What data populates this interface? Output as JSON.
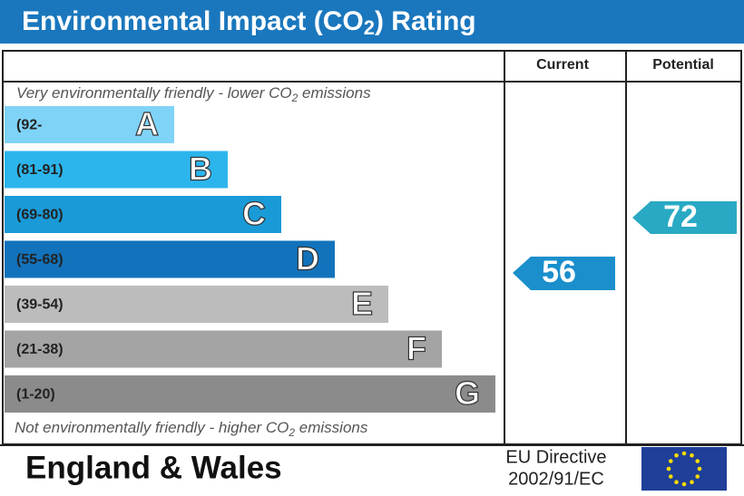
{
  "title": {
    "before": "Environmental Impact (CO",
    "sub": "2",
    "after": ") Rating"
  },
  "columns": {
    "current": "Current",
    "potential": "Potential"
  },
  "top_note": {
    "before": "Very environmentally friendly - lower CO",
    "sub": "2",
    "after": " emissions"
  },
  "bottom_note": {
    "before": "Not environmentally friendly - higher CO",
    "sub": "2",
    "after": " emissions"
  },
  "bands": [
    {
      "range": "(92-",
      "letter": "A"
    },
    {
      "range": "(81-91)",
      "letter": "B"
    },
    {
      "range": "(69-80)",
      "letter": "C"
    },
    {
      "range": "(55-68)",
      "letter": "D"
    },
    {
      "range": "(39-54)",
      "letter": "E"
    },
    {
      "range": "(21-38)",
      "letter": "F"
    },
    {
      "range": "(1-20)",
      "letter": "G"
    }
  ],
  "current_rating": "56",
  "potential_rating": "72",
  "footer": {
    "region": "England & Wales",
    "directive_line1": "EU Directive",
    "directive_line2": "2002/91/EC"
  }
}
